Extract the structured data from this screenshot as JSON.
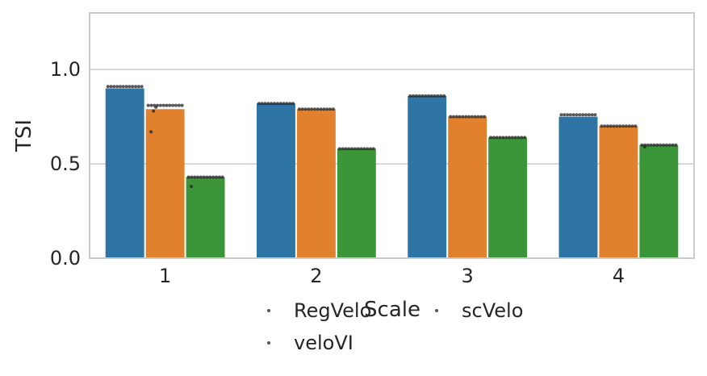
{
  "chart_data": {
    "type": "bar",
    "title": "",
    "xlabel": "Scale",
    "ylabel": "TSI",
    "categories": [
      "1",
      "2",
      "3",
      "4"
    ],
    "ylim": [
      0,
      1.3
    ],
    "yticks": [
      "0.0",
      "0.5",
      "1.0"
    ],
    "grid": "horizontal",
    "legend_position": "bottom",
    "series": [
      {
        "name": "RegVelo",
        "color": "#2e75a6",
        "values": [
          0.9,
          0.82,
          0.86,
          0.75
        ]
      },
      {
        "name": "veloVI",
        "color": "#e2812d",
        "values": [
          0.79,
          0.79,
          0.75,
          0.7
        ]
      },
      {
        "name": "scVelo",
        "color": "#3a9639",
        "values": [
          0.43,
          0.58,
          0.64,
          0.6
        ]
      }
    ],
    "points": [
      [
        0.91,
        0.82,
        0.86,
        0.76
      ],
      [
        0.81,
        0.79,
        0.75,
        0.7
      ],
      [
        0.43,
        0.58,
        0.64,
        0.6
      ]
    ],
    "outliers": [
      {
        "series": 1,
        "category": 0,
        "values": [
          0.67,
          0.78,
          0.8
        ]
      },
      {
        "series": 2,
        "category": 0,
        "values": [
          0.38
        ]
      },
      {
        "series": 2,
        "category": 3,
        "values": [
          0.59
        ]
      }
    ]
  }
}
